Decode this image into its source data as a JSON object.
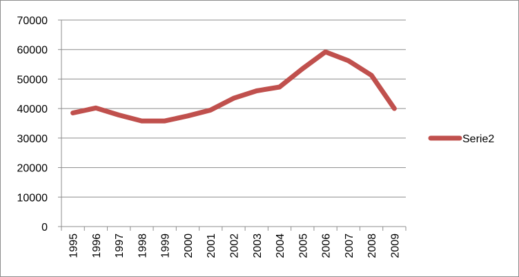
{
  "chart_data": {
    "type": "line",
    "categories": [
      "1995",
      "1996",
      "1997",
      "1998",
      "1999",
      "2000",
      "2001",
      "2002",
      "2003",
      "2004",
      "2005",
      "2006",
      "2007",
      "2008",
      "2009"
    ],
    "series": [
      {
        "name": "Serie2",
        "color": "#c0504d",
        "values": [
          38500,
          40200,
          37800,
          35800,
          35800,
          37500,
          39500,
          43500,
          46000,
          47300,
          53500,
          59200,
          56200,
          51300,
          40000
        ]
      }
    ],
    "yticks": [
      "0",
      "10000",
      "20000",
      "30000",
      "40000",
      "50000",
      "60000",
      "70000"
    ],
    "ylim": [
      0,
      70000
    ],
    "grid": "horizontal",
    "legend_position": "right"
  }
}
